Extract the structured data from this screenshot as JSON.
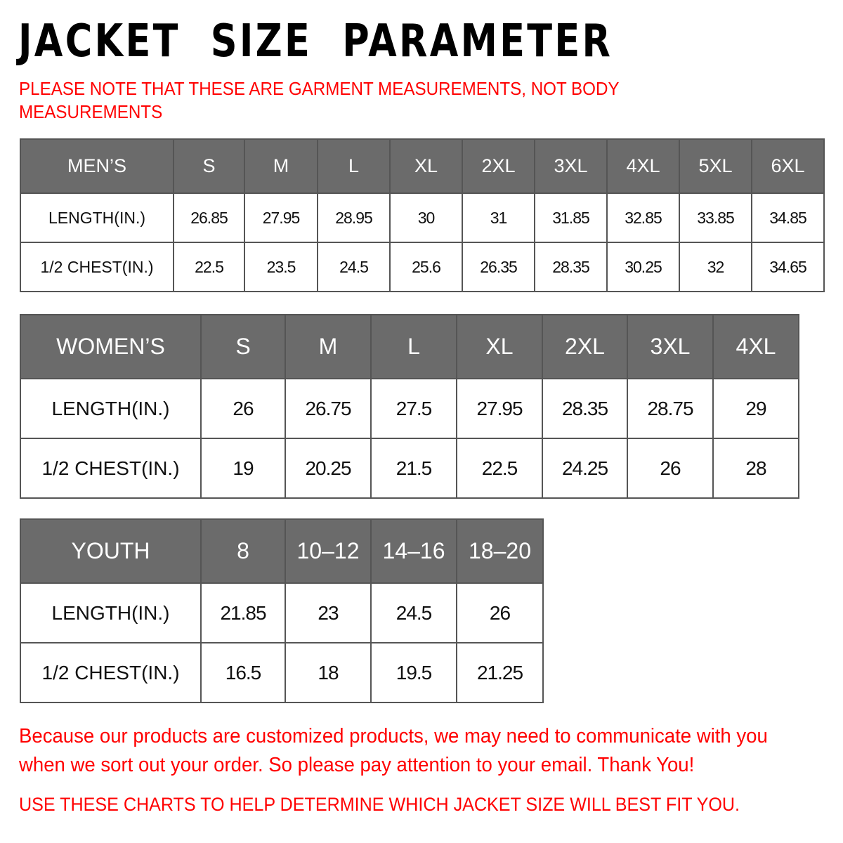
{
  "title": "JACKET  SIZE  PARAMETER",
  "note": "PLEASE NOTE THAT THESE ARE GARMENT MEASUREMENTS, NOT BODY MEASUREMENTS",
  "colors": {
    "header_bg": "#6b6b6b",
    "accent_red": "#ff0000",
    "border": "#555555"
  },
  "men": {
    "header": "MEN’S",
    "sizes": [
      "S",
      "M",
      "L",
      "XL",
      "2XL",
      "3XL",
      "4XL",
      "5XL",
      "6XL"
    ],
    "rows": [
      {
        "label": "LENGTH(IN.)",
        "values": [
          "26.85",
          "27.95",
          "28.95",
          "30",
          "31",
          "31.85",
          "32.85",
          "33.85",
          "34.85"
        ]
      },
      {
        "label": "1/2 CHEST(IN.)",
        "values": [
          "22.5",
          "23.5",
          "24.5",
          "25.6",
          "26.35",
          "28.35",
          "30.25",
          "32",
          "34.65"
        ]
      }
    ]
  },
  "women": {
    "header": "WOMEN’S",
    "sizes": [
      "S",
      "M",
      "L",
      "XL",
      "2XL",
      "3XL",
      "4XL"
    ],
    "rows": [
      {
        "label": "LENGTH(IN.)",
        "values": [
          "26",
          "26.75",
          "27.5",
          "27.95",
          "28.35",
          "28.75",
          "29"
        ]
      },
      {
        "label": "1/2 CHEST(IN.)",
        "values": [
          "19",
          "20.25",
          "21.5",
          "22.5",
          "24.25",
          "26",
          "28"
        ]
      }
    ]
  },
  "youth": {
    "header": "YOUTH",
    "sizes": [
      "8",
      "10–12",
      "14–16",
      "18–20"
    ],
    "rows": [
      {
        "label": "LENGTH(IN.)",
        "values": [
          "21.85",
          "23",
          "24.5",
          "26"
        ]
      },
      {
        "label": "1/2 CHEST(IN.)",
        "values": [
          "16.5",
          "18",
          "19.5",
          "21.25"
        ]
      }
    ]
  },
  "footer": {
    "message": "Because our products are customized products, we may need to communicate with you when we sort out your order. So please pay attention to your email. Thank You!",
    "advice": "USE THESE CHARTS TO HELP DETERMINE WHICH JACKET SIZE WILL BEST FIT YOU."
  }
}
